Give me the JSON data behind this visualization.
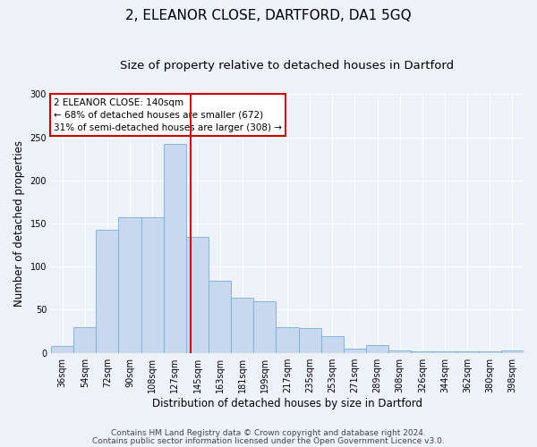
{
  "title": "2, ELEANOR CLOSE, DARTFORD, DA1 5GQ",
  "subtitle": "Size of property relative to detached houses in Dartford",
  "xlabel": "Distribution of detached houses by size in Dartford",
  "ylabel": "Number of detached properties",
  "categories": [
    "36sqm",
    "54sqm",
    "72sqm",
    "90sqm",
    "108sqm",
    "127sqm",
    "145sqm",
    "163sqm",
    "181sqm",
    "199sqm",
    "217sqm",
    "235sqm",
    "253sqm",
    "271sqm",
    "289sqm",
    "308sqm",
    "326sqm",
    "344sqm",
    "362sqm",
    "380sqm",
    "398sqm"
  ],
  "values": [
    8,
    30,
    143,
    157,
    157,
    242,
    134,
    84,
    64,
    60,
    30,
    29,
    19,
    5,
    9,
    3,
    2,
    2,
    2,
    2,
    3
  ],
  "bar_color": "#c8d8ee",
  "bar_edge_color": "#7aadd4",
  "vline_color": "#cc0000",
  "ylim": [
    0,
    300
  ],
  "yticks": [
    0,
    50,
    100,
    150,
    200,
    250,
    300
  ],
  "annotation_title": "2 ELEANOR CLOSE: 140sqm",
  "annotation_line1": "← 68% of detached houses are smaller (672)",
  "annotation_line2": "31% of semi-detached houses are larger (308) →",
  "annotation_box_facecolor": "#ffffff",
  "annotation_box_edgecolor": "#cc0000",
  "footer_line1": "Contains HM Land Registry data © Crown copyright and database right 2024.",
  "footer_line2": "Contains public sector information licensed under the Open Government Licence v3.0.",
  "background_color": "#edf2f9",
  "plot_bg_color": "#edf2f9",
  "title_fontsize": 11,
  "subtitle_fontsize": 9.5,
  "axis_label_fontsize": 8.5,
  "tick_fontsize": 7,
  "annotation_fontsize": 7.5,
  "footer_fontsize": 6.5
}
